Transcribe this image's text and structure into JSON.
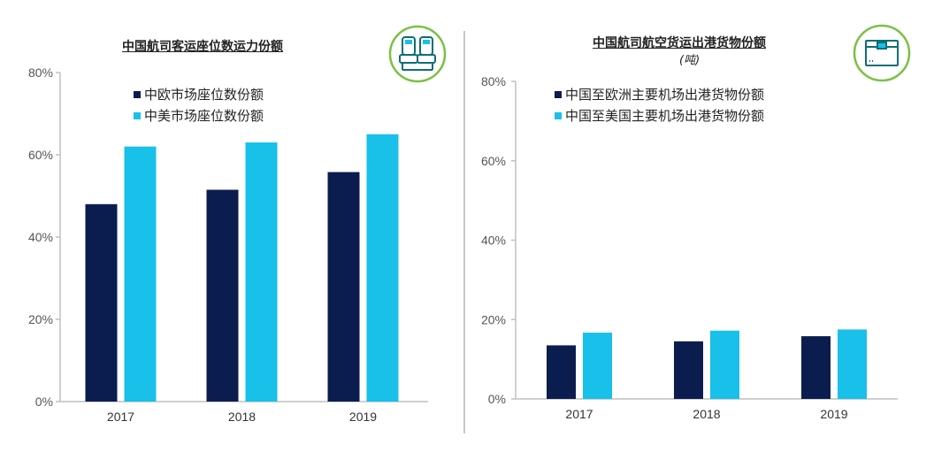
{
  "charts": [
    {
      "title": "中国航司客运座位数运力份额",
      "subtitle": "",
      "icon": "airplane-seats-icon"
    },
    {
      "title": "中国航司航空货运出港货物份额",
      "subtitle": "(吨)",
      "icon": "cargo-box-icon"
    }
  ],
  "colors": {
    "dark": "#0b1c4f",
    "light": "#18c0ea",
    "axis": "#c0c0c0",
    "icon_ring": "#7ac143"
  },
  "chart_data": [
    {
      "type": "bar",
      "title": "中国航司客运座位数运力份额",
      "categories": [
        "2017",
        "2018",
        "2019"
      ],
      "series": [
        {
          "name": "中欧市场座位数份额",
          "values": [
            48,
            51.5,
            55.8
          ],
          "color": "#0b1c4f"
        },
        {
          "name": "中美市场座位数份额",
          "values": [
            62,
            63,
            65
          ],
          "color": "#18c0ea"
        }
      ],
      "ylim": [
        0,
        80
      ],
      "yticks": [
        "0%",
        "20%",
        "40%",
        "60%",
        "80%"
      ],
      "grid": false,
      "legend": "top-left"
    },
    {
      "type": "bar",
      "title": "中国航司航空货运出港货物份额",
      "subtitle": "(吨)",
      "categories": [
        "2017",
        "2018",
        "2019"
      ],
      "series": [
        {
          "name": "中国至欧洲主要机场出港货物份额",
          "values": [
            13.5,
            14.5,
            15.8
          ],
          "color": "#0b1c4f"
        },
        {
          "name": "中国至美国主要机场出港货物份额",
          "values": [
            16.7,
            17.2,
            17.5
          ],
          "color": "#18c0ea"
        }
      ],
      "ylim": [
        0,
        80
      ],
      "yticks": [
        "0%",
        "20%",
        "40%",
        "60%",
        "80%"
      ],
      "grid": false,
      "legend": "top-left"
    }
  ]
}
